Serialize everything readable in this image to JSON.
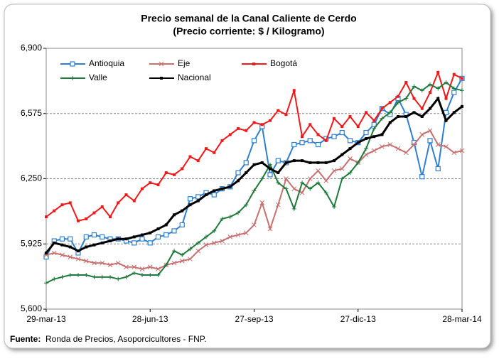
{
  "chart_data": {
    "type": "line",
    "title": "Precio semanal de la Canal Caliente de Cerdo",
    "subtitle": "(Precio corriente: $ / Kilogramo)",
    "source_label": "Fuente:",
    "source": "Ronda de Precios, Asoporcicultores  - FNP.",
    "categories": [
      "29-mar-13",
      null,
      null,
      null,
      null,
      null,
      null,
      null,
      null,
      null,
      null,
      null,
      null,
      "28-jun-13",
      null,
      null,
      null,
      null,
      null,
      null,
      null,
      null,
      null,
      null,
      null,
      null,
      "27-sep-13",
      null,
      null,
      null,
      null,
      null,
      null,
      null,
      null,
      null,
      null,
      null,
      null,
      "27-dic-13",
      null,
      null,
      null,
      null,
      null,
      null,
      null,
      null,
      null,
      null,
      null,
      null,
      "28-mar-14"
    ],
    "ylim": [
      5600,
      6900
    ],
    "yticks": [
      {
        "value": 5600,
        "label": "5,600"
      },
      {
        "value": 5925,
        "label": "5,925"
      },
      {
        "value": 6250,
        "label": "6,250"
      },
      {
        "value": 6575,
        "label": "6,575"
      },
      {
        "value": 6900,
        "label": "6,900"
      }
    ],
    "grid": true,
    "series": [
      {
        "name": "Antioquia",
        "color": "#2e7fd0",
        "marker": "square-open",
        "values": [
          5860,
          5940,
          5950,
          5950,
          5880,
          5960,
          5970,
          5960,
          5950,
          5950,
          5940,
          5930,
          5950,
          5930,
          5960,
          5970,
          5990,
          6020,
          6150,
          6160,
          6180,
          6170,
          6200,
          6210,
          6280,
          6330,
          6440,
          6510,
          6270,
          6340,
          6330,
          6420,
          6430,
          6440,
          6420,
          6450,
          6460,
          6480,
          6440,
          6430,
          6480,
          6520,
          6600,
          6570,
          6650,
          6570,
          6430,
          6260,
          6440,
          6300,
          6580,
          6680,
          6750
        ]
      },
      {
        "name": "Eje",
        "color": "#c87070",
        "marker": "x",
        "values": [
          5870,
          5880,
          5870,
          5860,
          5850,
          5840,
          5830,
          5830,
          5820,
          5830,
          5810,
          5810,
          5800,
          5810,
          5800,
          5820,
          5830,
          5840,
          5850,
          5890,
          5920,
          5930,
          5940,
          5960,
          5970,
          5980,
          6020,
          6130,
          6000,
          6120,
          6250,
          6200,
          6180,
          6250,
          6290,
          6240,
          6290,
          6300,
          6350,
          6330,
          6370,
          6390,
          6410,
          6420,
          6400,
          6380,
          6420,
          6470,
          6490,
          6420,
          6410,
          6380,
          6390
        ]
      },
      {
        "name": "Bogotá",
        "color": "#f01818",
        "marker": "square",
        "values": [
          6060,
          6090,
          6120,
          6130,
          6040,
          6050,
          6080,
          6110,
          6060,
          6130,
          6170,
          6140,
          6200,
          6230,
          6220,
          6280,
          6270,
          6300,
          6360,
          6340,
          6400,
          6380,
          6440,
          6470,
          6500,
          6490,
          6530,
          6520,
          6540,
          6590,
          6570,
          6690,
          6460,
          6520,
          6470,
          6440,
          6550,
          6510,
          6560,
          6510,
          6580,
          6540,
          6600,
          6630,
          6660,
          6730,
          6650,
          6600,
          6680,
          6780,
          6650,
          6770,
          6750
        ]
      },
      {
        "name": "Valle",
        "color": "#1e7a3a",
        "marker": "plus",
        "values": [
          5730,
          5750,
          5760,
          5770,
          5770,
          5770,
          5760,
          5760,
          5760,
          5750,
          5760,
          5780,
          5770,
          5770,
          5770,
          5820,
          5890,
          5870,
          5900,
          5930,
          5960,
          5990,
          6050,
          6060,
          6080,
          6120,
          6190,
          6250,
          6320,
          6230,
          6200,
          6100,
          6230,
          6200,
          6230,
          6180,
          6110,
          6250,
          6280,
          6330,
          6400,
          6500,
          6550,
          6580,
          6630,
          6650,
          6710,
          6690,
          6720,
          6700,
          6730,
          6700,
          6690
        ]
      },
      {
        "name": "Nacional",
        "color": "#000000",
        "marker": "square",
        "values": [
          5880,
          5930,
          5920,
          5910,
          5890,
          5910,
          5920,
          5930,
          5940,
          5950,
          5950,
          5960,
          5970,
          5980,
          6000,
          6020,
          6070,
          6090,
          6120,
          6140,
          6170,
          6190,
          6200,
          6210,
          6240,
          6280,
          6320,
          6330,
          6300,
          6280,
          6330,
          6340,
          6340,
          6330,
          6330,
          6330,
          6340,
          6370,
          6400,
          6430,
          6450,
          6460,
          6470,
          6530,
          6560,
          6560,
          6580,
          6560,
          6600,
          6650,
          6540,
          6580,
          6610
        ]
      }
    ]
  }
}
